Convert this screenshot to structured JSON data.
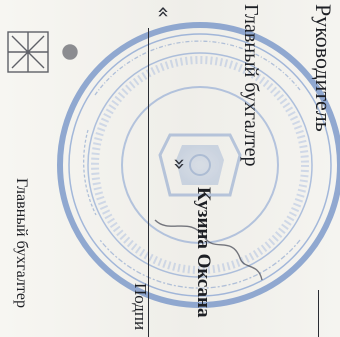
{
  "document": {
    "role_head": "Руководитель",
    "role_chief_accountant": "Главный бухгалтер",
    "signer_name": "Кузина Оксана",
    "signature_caption": "Подпи",
    "signer_position": "Главный бухгалтер",
    "stamp_ring_text": "",
    "marker_top": "«",
    "marker_mid": "»"
  },
  "colors": {
    "stamp_ink": "#6f8fc6",
    "text_ink": "#1d1f24",
    "paper": "#f4f3ef"
  }
}
